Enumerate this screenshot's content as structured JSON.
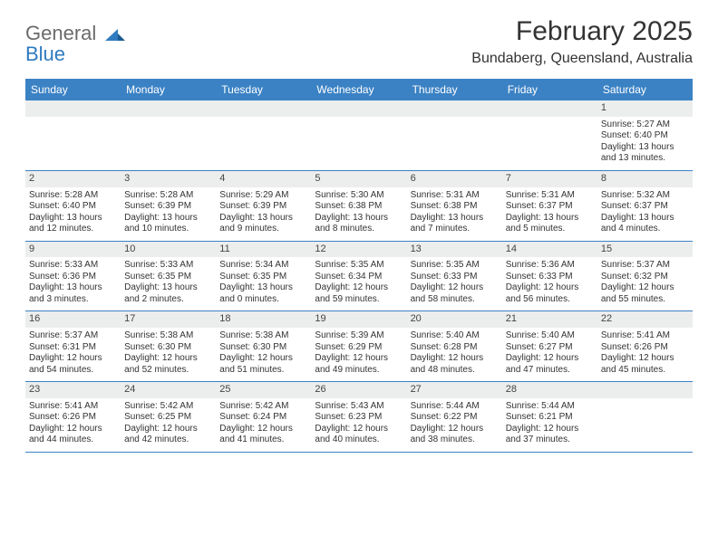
{
  "logo": {
    "line1": "General",
    "line2": "Blue"
  },
  "title": "February 2025",
  "location": "Bundaberg, Queensland, Australia",
  "colors": {
    "header_bg": "#3b82c4",
    "header_text": "#ffffff",
    "daynum_bg": "#eceded",
    "border": "#3b82c4",
    "logo_gray": "#6b6b6b",
    "logo_blue": "#2f7bbf"
  },
  "day_names": [
    "Sunday",
    "Monday",
    "Tuesday",
    "Wednesday",
    "Thursday",
    "Friday",
    "Saturday"
  ],
  "weeks": [
    [
      {
        "n": "",
        "sr": "",
        "ss": "",
        "dl": ""
      },
      {
        "n": "",
        "sr": "",
        "ss": "",
        "dl": ""
      },
      {
        "n": "",
        "sr": "",
        "ss": "",
        "dl": ""
      },
      {
        "n": "",
        "sr": "",
        "ss": "",
        "dl": ""
      },
      {
        "n": "",
        "sr": "",
        "ss": "",
        "dl": ""
      },
      {
        "n": "",
        "sr": "",
        "ss": "",
        "dl": ""
      },
      {
        "n": "1",
        "sr": "Sunrise: 5:27 AM",
        "ss": "Sunset: 6:40 PM",
        "dl": "Daylight: 13 hours and 13 minutes."
      }
    ],
    [
      {
        "n": "2",
        "sr": "Sunrise: 5:28 AM",
        "ss": "Sunset: 6:40 PM",
        "dl": "Daylight: 13 hours and 12 minutes."
      },
      {
        "n": "3",
        "sr": "Sunrise: 5:28 AM",
        "ss": "Sunset: 6:39 PM",
        "dl": "Daylight: 13 hours and 10 minutes."
      },
      {
        "n": "4",
        "sr": "Sunrise: 5:29 AM",
        "ss": "Sunset: 6:39 PM",
        "dl": "Daylight: 13 hours and 9 minutes."
      },
      {
        "n": "5",
        "sr": "Sunrise: 5:30 AM",
        "ss": "Sunset: 6:38 PM",
        "dl": "Daylight: 13 hours and 8 minutes."
      },
      {
        "n": "6",
        "sr": "Sunrise: 5:31 AM",
        "ss": "Sunset: 6:38 PM",
        "dl": "Daylight: 13 hours and 7 minutes."
      },
      {
        "n": "7",
        "sr": "Sunrise: 5:31 AM",
        "ss": "Sunset: 6:37 PM",
        "dl": "Daylight: 13 hours and 5 minutes."
      },
      {
        "n": "8",
        "sr": "Sunrise: 5:32 AM",
        "ss": "Sunset: 6:37 PM",
        "dl": "Daylight: 13 hours and 4 minutes."
      }
    ],
    [
      {
        "n": "9",
        "sr": "Sunrise: 5:33 AM",
        "ss": "Sunset: 6:36 PM",
        "dl": "Daylight: 13 hours and 3 minutes."
      },
      {
        "n": "10",
        "sr": "Sunrise: 5:33 AM",
        "ss": "Sunset: 6:35 PM",
        "dl": "Daylight: 13 hours and 2 minutes."
      },
      {
        "n": "11",
        "sr": "Sunrise: 5:34 AM",
        "ss": "Sunset: 6:35 PM",
        "dl": "Daylight: 13 hours and 0 minutes."
      },
      {
        "n": "12",
        "sr": "Sunrise: 5:35 AM",
        "ss": "Sunset: 6:34 PM",
        "dl": "Daylight: 12 hours and 59 minutes."
      },
      {
        "n": "13",
        "sr": "Sunrise: 5:35 AM",
        "ss": "Sunset: 6:33 PM",
        "dl": "Daylight: 12 hours and 58 minutes."
      },
      {
        "n": "14",
        "sr": "Sunrise: 5:36 AM",
        "ss": "Sunset: 6:33 PM",
        "dl": "Daylight: 12 hours and 56 minutes."
      },
      {
        "n": "15",
        "sr": "Sunrise: 5:37 AM",
        "ss": "Sunset: 6:32 PM",
        "dl": "Daylight: 12 hours and 55 minutes."
      }
    ],
    [
      {
        "n": "16",
        "sr": "Sunrise: 5:37 AM",
        "ss": "Sunset: 6:31 PM",
        "dl": "Daylight: 12 hours and 54 minutes."
      },
      {
        "n": "17",
        "sr": "Sunrise: 5:38 AM",
        "ss": "Sunset: 6:30 PM",
        "dl": "Daylight: 12 hours and 52 minutes."
      },
      {
        "n": "18",
        "sr": "Sunrise: 5:38 AM",
        "ss": "Sunset: 6:30 PM",
        "dl": "Daylight: 12 hours and 51 minutes."
      },
      {
        "n": "19",
        "sr": "Sunrise: 5:39 AM",
        "ss": "Sunset: 6:29 PM",
        "dl": "Daylight: 12 hours and 49 minutes."
      },
      {
        "n": "20",
        "sr": "Sunrise: 5:40 AM",
        "ss": "Sunset: 6:28 PM",
        "dl": "Daylight: 12 hours and 48 minutes."
      },
      {
        "n": "21",
        "sr": "Sunrise: 5:40 AM",
        "ss": "Sunset: 6:27 PM",
        "dl": "Daylight: 12 hours and 47 minutes."
      },
      {
        "n": "22",
        "sr": "Sunrise: 5:41 AM",
        "ss": "Sunset: 6:26 PM",
        "dl": "Daylight: 12 hours and 45 minutes."
      }
    ],
    [
      {
        "n": "23",
        "sr": "Sunrise: 5:41 AM",
        "ss": "Sunset: 6:26 PM",
        "dl": "Daylight: 12 hours and 44 minutes."
      },
      {
        "n": "24",
        "sr": "Sunrise: 5:42 AM",
        "ss": "Sunset: 6:25 PM",
        "dl": "Daylight: 12 hours and 42 minutes."
      },
      {
        "n": "25",
        "sr": "Sunrise: 5:42 AM",
        "ss": "Sunset: 6:24 PM",
        "dl": "Daylight: 12 hours and 41 minutes."
      },
      {
        "n": "26",
        "sr": "Sunrise: 5:43 AM",
        "ss": "Sunset: 6:23 PM",
        "dl": "Daylight: 12 hours and 40 minutes."
      },
      {
        "n": "27",
        "sr": "Sunrise: 5:44 AM",
        "ss": "Sunset: 6:22 PM",
        "dl": "Daylight: 12 hours and 38 minutes."
      },
      {
        "n": "28",
        "sr": "Sunrise: 5:44 AM",
        "ss": "Sunset: 6:21 PM",
        "dl": "Daylight: 12 hours and 37 minutes."
      },
      {
        "n": "",
        "sr": "",
        "ss": "",
        "dl": ""
      }
    ]
  ]
}
